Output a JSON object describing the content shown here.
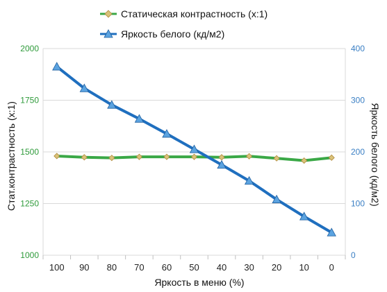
{
  "chart_data": {
    "type": "line",
    "x": [
      100,
      90,
      80,
      70,
      60,
      50,
      40,
      30,
      20,
      10,
      0
    ],
    "xlabel": "Яркость в меню (%)",
    "y_left": {
      "label": "Стат.контрастность  (x:1)",
      "lim": [
        1000,
        2000
      ],
      "ticks": [
        1000,
        1250,
        1500,
        1750,
        2000
      ]
    },
    "y_right": {
      "label": "Яркость белого (кд/м2)",
      "lim": [
        0,
        400
      ],
      "ticks": [
        0,
        100,
        200,
        300,
        400
      ]
    },
    "series": [
      {
        "name": "Статическая контрастность (x:1)",
        "axis": "left",
        "color": "#3aa846",
        "marker": "diamond",
        "values": [
          1480,
          1474,
          1471,
          1476,
          1476,
          1476,
          1474,
          1479,
          1469,
          1458,
          1472
        ]
      },
      {
        "name": "Яркость белого (кд/м2)",
        "axis": "right",
        "color": "#1f6fbf",
        "marker": "triangle",
        "values": [
          365,
          323,
          291,
          264,
          235,
          205,
          175,
          144,
          108,
          75,
          44
        ]
      }
    ],
    "grid": true,
    "legend_position": "top"
  },
  "colors": {
    "left_axis": "#2e9a3a",
    "right_axis": "#3a7fc4",
    "marker_diamond_fill": "#d9c27a",
    "marker_triangle_fill": "#5ba3e0",
    "grid": "#d9d9d9"
  }
}
